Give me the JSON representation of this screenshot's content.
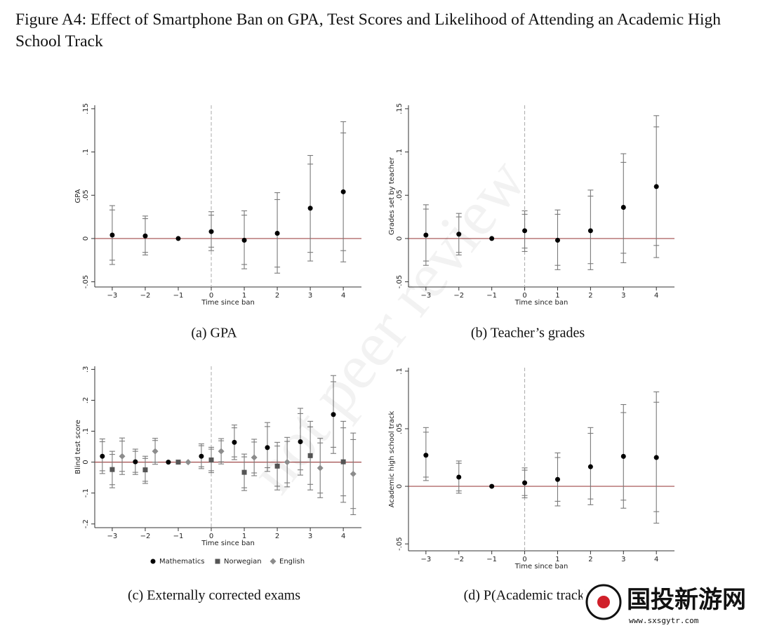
{
  "figure_title": "Figure A4: Effect of Smartphone Ban on GPA, Test Scores and Likelihood of Attending an Academic High School Track",
  "watermark": "not peer review",
  "logo": {
    "name": "国投新游网",
    "url": "www.sxsgytr.com"
  },
  "chart_data": [
    {
      "type": "errorbar",
      "caption": "(a) GPA",
      "xlabel": "Time since ban",
      "ylabel": "GPA",
      "xlim": [
        -3.53,
        4.55
      ],
      "ylim": [
        -0.056,
        0.154
      ],
      "xticks": [
        {
          "value": -3,
          "label": "−3"
        },
        {
          "value": -2,
          "label": "−2"
        },
        {
          "value": -1,
          "label": "−1"
        },
        0,
        1,
        2,
        3,
        4
      ],
      "yticks": [
        {
          "value": -0.05,
          "label": "-.05"
        },
        0,
        {
          "value": 0.05,
          "label": ".05"
        },
        {
          "value": 0.1,
          "label": ".1"
        },
        {
          "value": 0.15,
          "label": ".15"
        }
      ],
      "hline": 0,
      "vline": 0,
      "hline_color": "#a04a4a",
      "ci_color": "#7a7a7a",
      "series": [
        {
          "color": "#000000",
          "marker": "circle",
          "x": [
            -3,
            -2,
            -1,
            0,
            1,
            2,
            3,
            4
          ],
          "values": [
            0.004,
            0.003,
            0,
            0.008,
            -0.002,
            0.006,
            0.035,
            0.054
          ],
          "ci95_low": [
            -0.03,
            -0.019,
            null,
            -0.014,
            -0.035,
            -0.04,
            -0.026,
            -0.027
          ],
          "ci95_high": [
            0.038,
            0.026,
            null,
            0.031,
            0.032,
            0.053,
            0.096,
            0.135
          ],
          "ci90_low": [
            -0.025,
            -0.016,
            null,
            -0.01,
            -0.03,
            -0.033,
            -0.016,
            -0.014
          ],
          "ci90_high": [
            0.033,
            0.023,
            null,
            0.027,
            0.027,
            0.045,
            0.086,
            0.122
          ]
        }
      ]
    },
    {
      "type": "errorbar",
      "caption": "(b) Teacher’s grades",
      "xlabel": "Time since ban",
      "ylabel": "Grades set by teacher",
      "xlim": [
        -3.53,
        4.55
      ],
      "ylim": [
        -0.056,
        0.154
      ],
      "xticks": [
        {
          "value": -3,
          "label": "−3"
        },
        {
          "value": -2,
          "label": "−2"
        },
        {
          "value": -1,
          "label": "−1"
        },
        0,
        1,
        2,
        3,
        4
      ],
      "yticks": [
        {
          "value": -0.05,
          "label": "-.05"
        },
        0,
        {
          "value": 0.05,
          "label": ".05"
        },
        {
          "value": 0.1,
          "label": ".1"
        },
        {
          "value": 0.15,
          "label": ".15"
        }
      ],
      "hline": 0,
      "vline": 0,
      "hline_color": "#a04a4a",
      "ci_color": "#7a7a7a",
      "series": [
        {
          "color": "#000000",
          "marker": "circle",
          "x": [
            -3,
            -2,
            -1,
            0,
            1,
            2,
            3,
            4
          ],
          "values": [
            0.004,
            0.005,
            0,
            0.009,
            -0.002,
            0.009,
            0.036,
            0.06
          ],
          "ci95_low": [
            -0.031,
            -0.019,
            null,
            -0.015,
            -0.036,
            -0.036,
            -0.028,
            -0.022
          ],
          "ci95_high": [
            0.039,
            0.029,
            null,
            0.032,
            0.033,
            0.056,
            0.098,
            0.142
          ],
          "ci90_low": [
            -0.026,
            -0.016,
            null,
            -0.011,
            -0.031,
            -0.029,
            -0.017,
            -0.008
          ],
          "ci90_high": [
            0.034,
            0.025,
            null,
            0.028,
            0.028,
            0.049,
            0.088,
            0.129
          ]
        }
      ]
    },
    {
      "type": "errorbar",
      "caption": "(c) Externally corrected exams",
      "xlabel": "Time since ban",
      "ylabel": "Blind test score",
      "xlim": [
        -3.53,
        4.55
      ],
      "ylim": [
        -0.212,
        0.31
      ],
      "legend": "bottom",
      "xticks": [
        {
          "value": -3,
          "label": "−3"
        },
        {
          "value": -2,
          "label": "−2"
        },
        {
          "value": -1,
          "label": "−1"
        },
        0,
        1,
        2,
        3,
        4
      ],
      "yticks": [
        {
          "value": -0.2,
          "label": "-.2"
        },
        {
          "value": -0.1,
          "label": "-.1"
        },
        0,
        {
          "value": 0.1,
          "label": ".1"
        },
        {
          "value": 0.2,
          "label": ".2"
        },
        {
          "value": 0.3,
          "label": ".3"
        }
      ],
      "hline": 0,
      "vline": 0,
      "hline_color": "#a04a4a",
      "ci_color": "#7a7a7a",
      "series": [
        {
          "name": "Mathematics",
          "color": "#000000",
          "marker": "circle",
          "x": [
            -3.3,
            -2.3,
            -1.3,
            -0.3,
            0.7,
            1.7,
            2.7,
            3.7
          ],
          "values": [
            0.019,
            0.001,
            0,
            0.019,
            0.064,
            0.047,
            0.066,
            0.154
          ],
          "ci95_low": [
            -0.037,
            -0.04,
            null,
            -0.021,
            0.008,
            -0.03,
            -0.042,
            0.028
          ],
          "ci95_high": [
            0.075,
            0.042,
            null,
            0.059,
            0.12,
            0.128,
            0.174,
            0.28
          ],
          "ci90_low": [
            -0.028,
            -0.033,
            null,
            -0.015,
            0.017,
            -0.018,
            -0.025,
            0.048
          ],
          "ci90_high": [
            0.066,
            0.035,
            null,
            0.053,
            0.111,
            0.115,
            0.157,
            0.26
          ]
        },
        {
          "name": "Norwegian",
          "color": "#555555",
          "marker": "square",
          "x": [
            -3,
            -2,
            -1,
            0,
            1,
            2,
            3,
            4
          ],
          "values": [
            -0.024,
            -0.025,
            0,
            0.007,
            -0.033,
            -0.013,
            0.021,
            0.001
          ],
          "ci95_low": [
            -0.083,
            -0.069,
            null,
            -0.034,
            -0.092,
            -0.09,
            -0.09,
            -0.13
          ],
          "ci95_high": [
            0.035,
            0.019,
            null,
            0.048,
            0.026,
            0.064,
            0.132,
            0.132
          ],
          "ci90_low": [
            -0.073,
            -0.062,
            null,
            -0.028,
            -0.083,
            -0.078,
            -0.072,
            -0.109
          ],
          "ci90_high": [
            0.025,
            0.012,
            null,
            0.042,
            0.017,
            0.052,
            0.114,
            0.111
          ]
        },
        {
          "name": "English",
          "color": "#8c8c8c",
          "marker": "diamond",
          "x": [
            -2.7,
            -1.7,
            -0.7,
            0.3,
            1.3,
            2.3,
            3.3,
            4.3
          ],
          "values": [
            0.019,
            0.035,
            0,
            0.035,
            0.015,
            0,
            -0.019,
            -0.038
          ],
          "ci95_low": [
            -0.04,
            -0.007,
            null,
            -0.006,
            -0.044,
            -0.08,
            -0.115,
            -0.17
          ],
          "ci95_high": [
            0.078,
            0.077,
            null,
            0.076,
            0.074,
            0.08,
            0.077,
            0.094
          ],
          "ci90_low": [
            -0.03,
            0.0,
            null,
            0.001,
            -0.035,
            -0.067,
            -0.1,
            -0.15
          ],
          "ci90_high": [
            0.068,
            0.07,
            null,
            0.069,
            0.065,
            0.067,
            0.062,
            0.073
          ]
        }
      ]
    },
    {
      "type": "errorbar",
      "caption": "(d) P(Academic track)",
      "xlabel": "Time since ban",
      "ylabel": "Academic high school track",
      "xlim": [
        -3.53,
        4.55
      ],
      "ylim": [
        -0.056,
        0.103
      ],
      "xticks": [
        {
          "value": -3,
          "label": "−3"
        },
        {
          "value": -2,
          "label": "−2"
        },
        {
          "value": -1,
          "label": "−1"
        },
        0,
        1,
        2,
        3,
        4
      ],
      "yticks": [
        {
          "value": -0.05,
          "label": "-.05"
        },
        0,
        {
          "value": 0.05,
          "label": ".05"
        },
        {
          "value": 0.1,
          "label": ".1"
        }
      ],
      "hline": 0,
      "vline": 0,
      "hline_color": "#a04a4a",
      "ci_color": "#7a7a7a",
      "series": [
        {
          "color": "#000000",
          "marker": "circle",
          "x": [
            -3,
            -2,
            -1,
            0,
            1,
            2,
            3,
            4
          ],
          "values": [
            0.027,
            0.008,
            0,
            0.003,
            0.006,
            0.017,
            0.026,
            0.025
          ],
          "ci95_low": [
            0.005,
            -0.006,
            null,
            -0.01,
            -0.017,
            -0.016,
            -0.019,
            -0.032
          ],
          "ci95_high": [
            0.051,
            0.022,
            null,
            0.016,
            0.029,
            0.051,
            0.071,
            0.082
          ],
          "ci90_low": [
            0.008,
            -0.004,
            null,
            -0.008,
            -0.013,
            -0.011,
            -0.012,
            -0.022
          ],
          "ci90_high": [
            0.047,
            0.02,
            null,
            0.014,
            0.025,
            0.046,
            0.064,
            0.073
          ]
        }
      ]
    }
  ]
}
